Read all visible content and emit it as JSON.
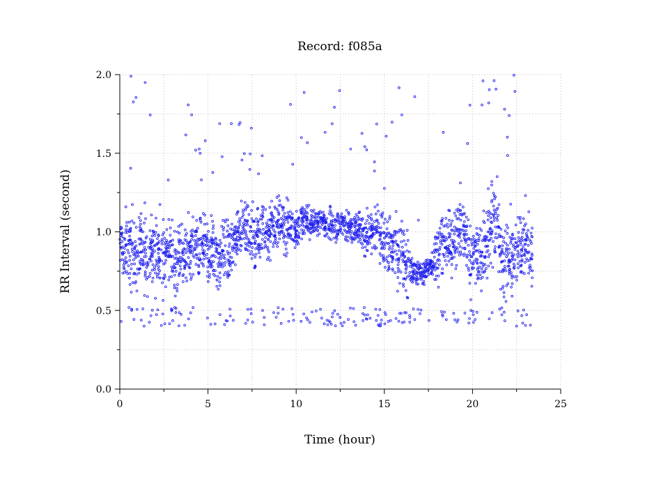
{
  "chart_data": {
    "type": "scatter",
    "title": "Record:  f085a",
    "xlabel": "Time (hour)",
    "ylabel": "RR Interval (second)",
    "xlim": [
      0,
      25
    ],
    "ylim": [
      0.0,
      2.0
    ],
    "x_ticks": [
      0,
      5,
      10,
      15,
      20,
      25
    ],
    "x_tick_labels": [
      "0",
      "5",
      "10",
      "15",
      "20",
      "25"
    ],
    "x_minor_ticks": [
      2.5,
      7.5,
      12.5,
      17.5,
      22.5
    ],
    "y_ticks": [
      0.0,
      0.5,
      1.0,
      1.5,
      2.0
    ],
    "y_tick_labels": [
      "0.0",
      "0.5",
      "1.0",
      "1.5",
      "2.0"
    ],
    "y_minor_ticks": [
      0.25,
      0.75,
      1.25,
      1.75
    ],
    "grid": true,
    "marker": "open-circle",
    "series": [
      {
        "color": "#2222ee",
        "x": [
          0.0,
          0.2,
          0.4,
          0.6,
          0.8,
          1.0,
          1.2,
          1.4,
          1.6,
          1.8,
          2.0,
          2.2,
          2.4,
          2.6,
          2.8,
          3.0,
          3.2,
          3.4,
          3.6,
          3.8,
          4.0,
          4.2,
          4.4,
          4.6,
          4.8,
          5.0,
          5.2,
          5.4,
          5.6,
          5.8,
          6.0,
          6.2,
          6.4,
          6.6,
          6.8,
          7.0,
          7.2,
          7.4,
          7.6,
          7.8,
          8.0,
          8.2,
          8.4,
          8.6,
          8.8,
          9.0,
          9.2,
          9.4,
          9.6,
          9.8,
          10.0,
          10.2,
          10.4,
          10.6,
          10.8,
          11.0,
          11.2,
          11.4,
          11.6,
          11.8,
          12.0,
          12.2,
          12.4,
          12.6,
          12.8,
          13.0,
          13.2,
          13.4,
          13.6,
          13.8,
          14.0,
          14.2,
          14.4,
          14.6,
          14.8,
          15.0,
          15.2,
          15.4,
          15.6,
          15.8,
          16.0,
          16.2,
          16.4,
          16.6,
          16.8,
          17.0,
          17.2,
          17.4,
          17.6,
          17.8,
          18.0,
          18.2,
          18.4,
          18.6,
          18.8,
          19.0,
          19.2,
          19.4,
          19.6,
          19.8,
          20.0,
          20.2,
          20.4,
          20.6,
          20.8,
          21.0,
          21.2,
          21.4,
          21.6,
          21.8,
          22.0,
          22.2,
          22.4,
          22.6,
          22.8,
          23.0,
          23.2,
          23.4
        ],
        "y": [
          0.92,
          0.88,
          0.95,
          0.85,
          0.9,
          0.82,
          0.93,
          0.87,
          0.8,
          0.9,
          0.84,
          0.88,
          0.78,
          0.86,
          0.92,
          0.84,
          0.8,
          0.89,
          0.86,
          0.82,
          0.9,
          0.88,
          0.85,
          0.92,
          0.88,
          0.84,
          0.9,
          0.86,
          0.82,
          0.88,
          0.9,
          0.85,
          0.87,
          0.98,
          1.02,
          1.05,
          1.0,
          0.98,
          0.95,
          1.0,
          0.96,
          1.02,
          0.98,
          1.04,
          1.0,
          1.08,
          1.05,
          1.02,
          1.06,
          1.04,
          1.02,
          1.05,
          1.08,
          1.06,
          1.04,
          1.07,
          1.05,
          1.08,
          1.06,
          1.04,
          1.05,
          1.02,
          1.04,
          1.06,
          1.02,
          1.03,
          1.0,
          1.02,
          1.04,
          1.0,
          0.98,
          1.0,
          0.97,
          1.02,
          0.98,
          0.95,
          0.92,
          0.9,
          0.88,
          0.86,
          0.84,
          0.82,
          0.8,
          0.74,
          0.73,
          0.75,
          0.72,
          0.76,
          0.78,
          0.82,
          0.88,
          0.92,
          0.9,
          0.95,
          0.92,
          0.97,
          1.0,
          1.05,
          0.98,
          0.85,
          0.82,
          0.88,
          0.84,
          0.9,
          0.95,
          1.02,
          1.1,
          1.05,
          0.9,
          0.82,
          0.8,
          0.78,
          0.85,
          0.88,
          0.9,
          0.92,
          0.88,
          0.85
        ],
        "spread": [
          0.12,
          0.14,
          0.13,
          0.15,
          0.14,
          0.16,
          0.13,
          0.14,
          0.15,
          0.13,
          0.14,
          0.12,
          0.15,
          0.14,
          0.13,
          0.14,
          0.15,
          0.13,
          0.12,
          0.14,
          0.15,
          0.13,
          0.14,
          0.12,
          0.13,
          0.14,
          0.12,
          0.13,
          0.14,
          0.12,
          0.13,
          0.14,
          0.12,
          0.12,
          0.11,
          0.1,
          0.11,
          0.12,
          0.13,
          0.12,
          0.13,
          0.11,
          0.12,
          0.1,
          0.12,
          0.11,
          0.1,
          0.11,
          0.1,
          0.09,
          0.08,
          0.07,
          0.06,
          0.07,
          0.06,
          0.05,
          0.06,
          0.05,
          0.06,
          0.07,
          0.06,
          0.07,
          0.06,
          0.07,
          0.08,
          0.07,
          0.08,
          0.09,
          0.08,
          0.09,
          0.1,
          0.09,
          0.1,
          0.11,
          0.12,
          0.13,
          0.12,
          0.14,
          0.15,
          0.13,
          0.14,
          0.12,
          0.1,
          0.05,
          0.05,
          0.04,
          0.05,
          0.05,
          0.06,
          0.1,
          0.12,
          0.13,
          0.12,
          0.14,
          0.13,
          0.15,
          0.14,
          0.16,
          0.15,
          0.14,
          0.13,
          0.14,
          0.15,
          0.16,
          0.17,
          0.18,
          0.17,
          0.16,
          0.15,
          0.14,
          0.15,
          0.14,
          0.13,
          0.14,
          0.13,
          0.14,
          0.13,
          0.12
        ]
      }
    ]
  }
}
